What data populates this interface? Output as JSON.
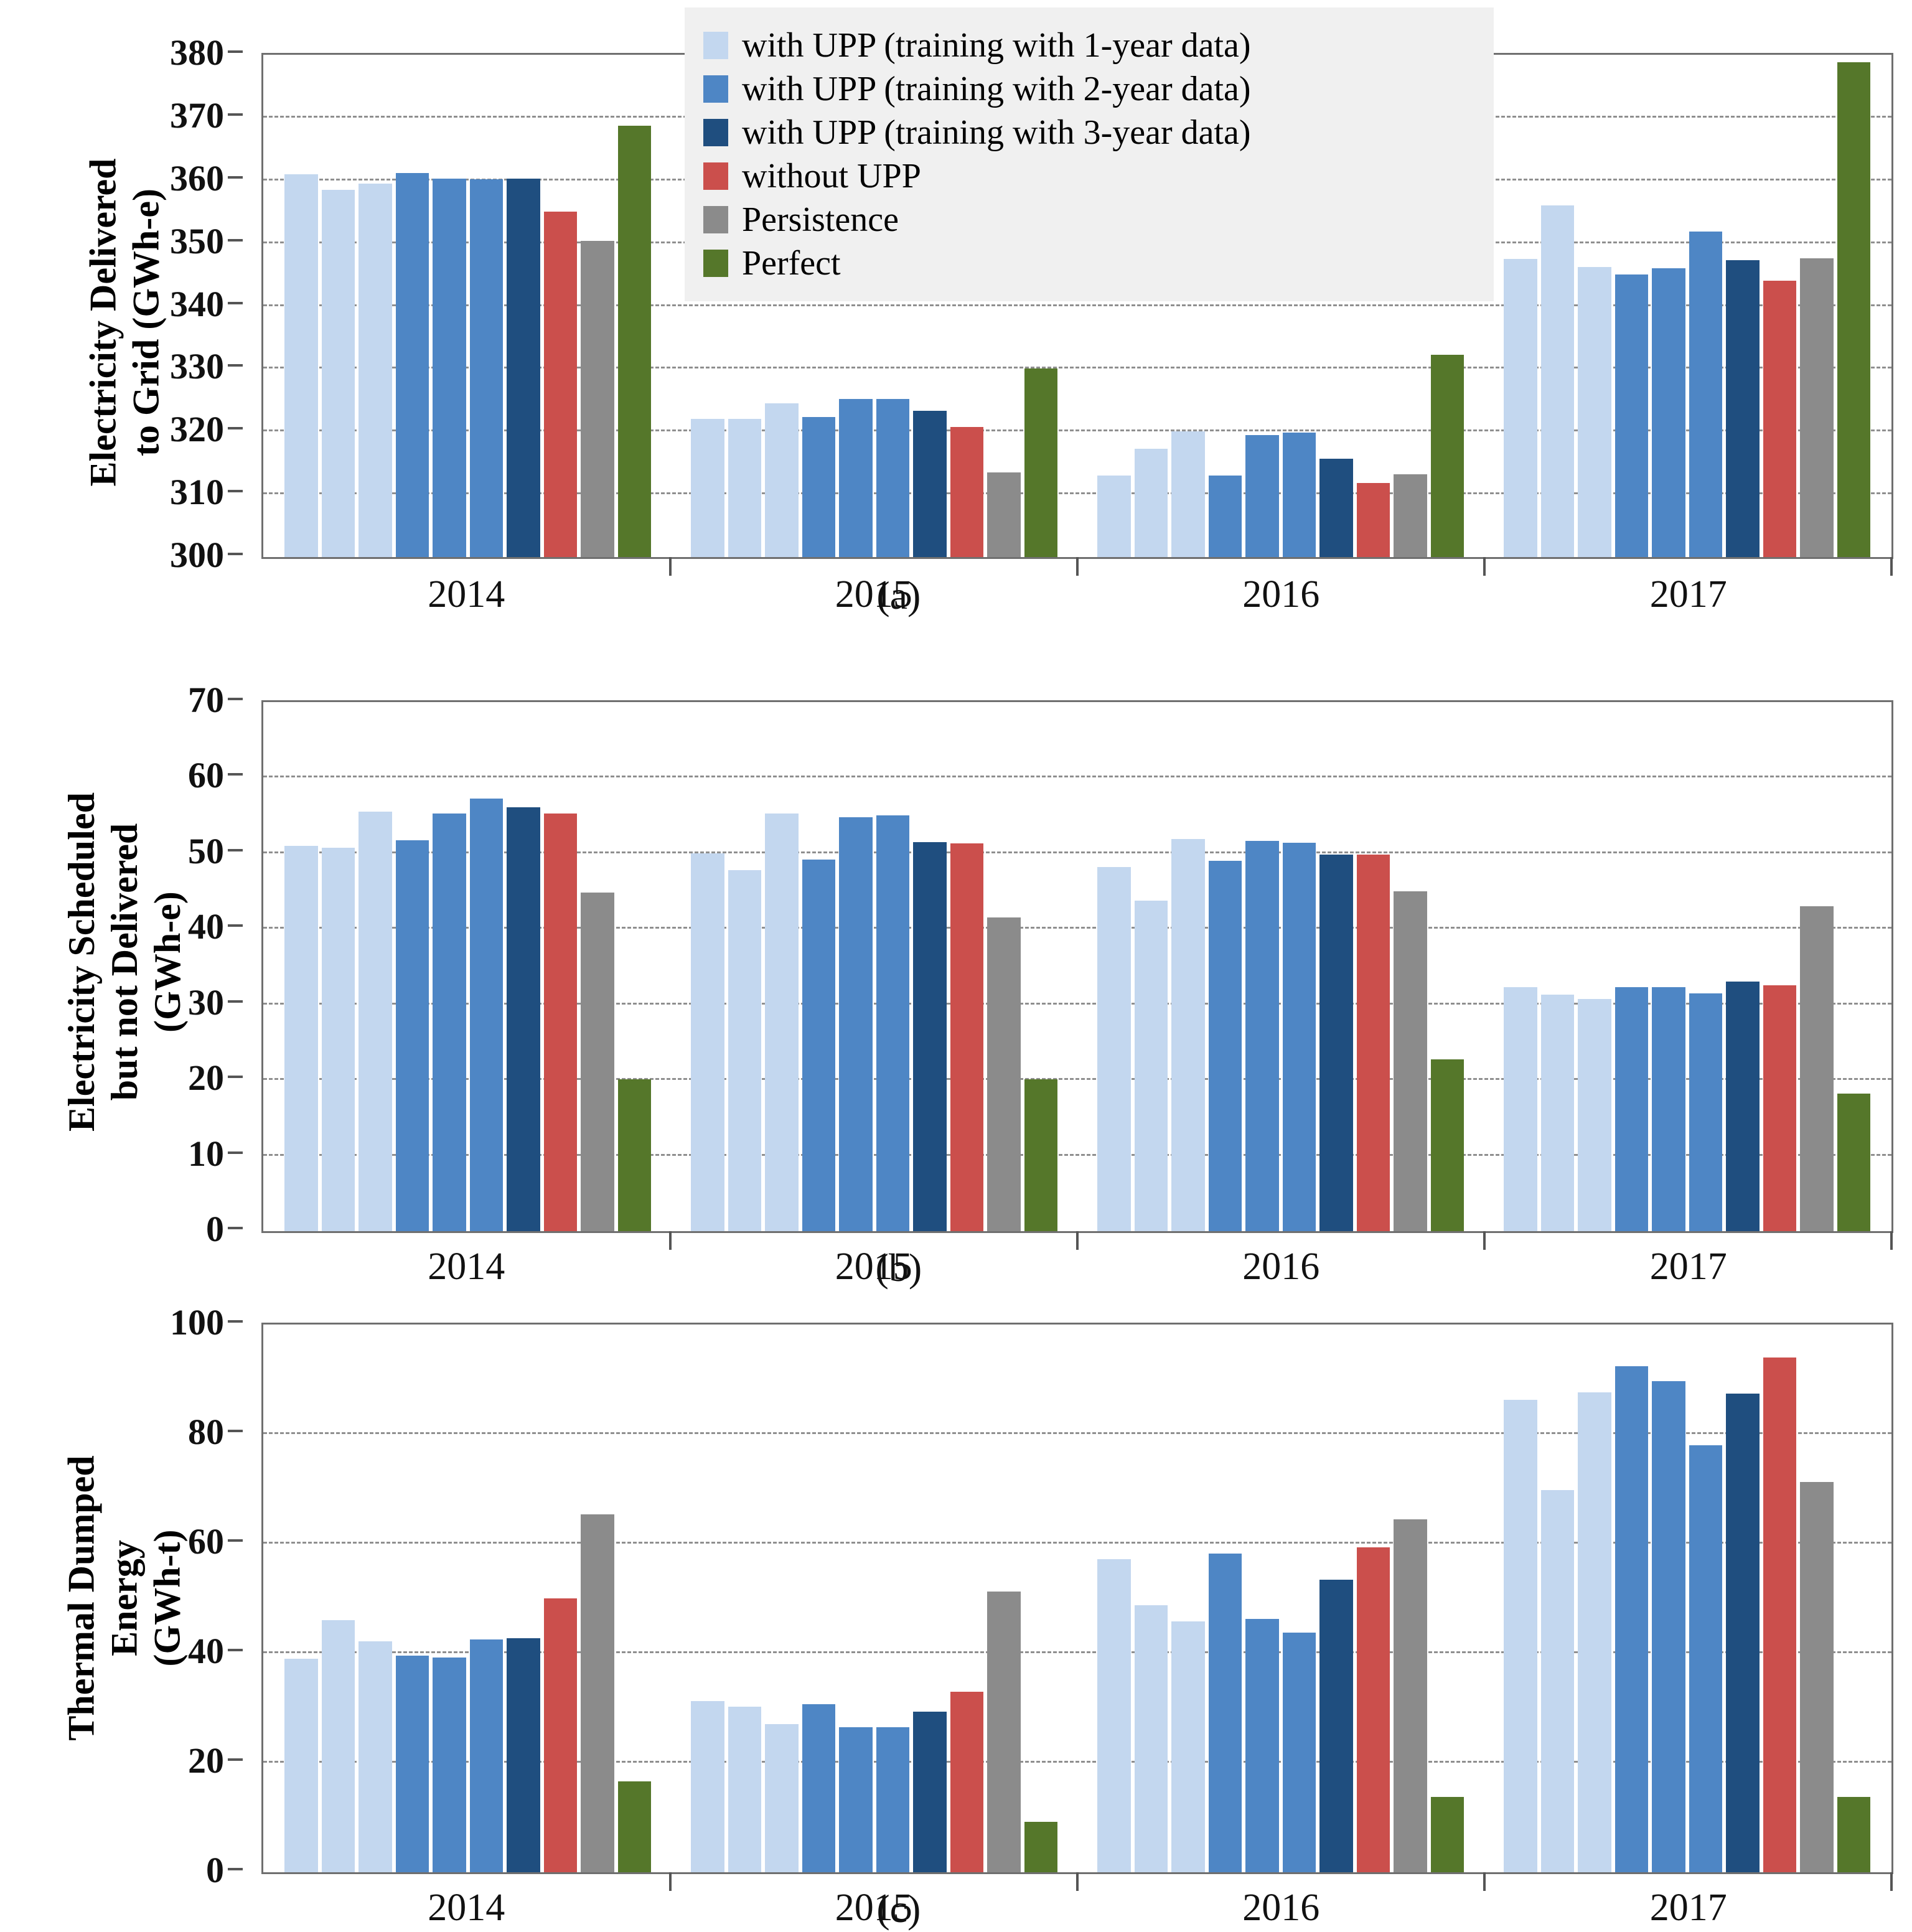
{
  "palette": {
    "upp1": "#C3D7EF",
    "upp2": "#4E86C5",
    "upp3": "#1F4E7F",
    "noupp": "#CB4F4C",
    "persistence": "#8B8B8B",
    "perfect": "#55772A"
  },
  "legend": [
    {
      "key": "upp1",
      "label": "with UPP (training with 1-year data)"
    },
    {
      "key": "upp2",
      "label": "with UPP (training with 2-year data)"
    },
    {
      "key": "upp3",
      "label": "with UPP (training with 3-year data)"
    },
    {
      "key": "noupp",
      "label": "without UPP"
    },
    {
      "key": "persistence",
      "label": "Persistence"
    },
    {
      "key": "perfect",
      "label": "Perfect"
    }
  ],
  "chart_data": [
    {
      "type": "bar",
      "panel_label": "(a)",
      "ylabel_lines": [
        "Electricity Delivered",
        "to Grid (GWh-e)"
      ],
      "ylim": [
        300,
        380
      ],
      "yticks": [
        300,
        310,
        320,
        330,
        340,
        350,
        360,
        370,
        380
      ],
      "grid": "dashed-horizontal",
      "legend_position": "top-center",
      "categories": [
        "2014",
        "2015",
        "2016",
        "2017"
      ],
      "bar_pattern": [
        "upp1",
        "upp1",
        "upp1",
        "upp2",
        "upp2",
        "upp2",
        "upp3",
        "noupp",
        "persistence",
        "perfect"
      ],
      "values": [
        [
          361.0,
          358.5,
          359.5,
          361.2,
          360.3,
          360.2,
          360.3,
          355.0,
          350.4,
          368.7
        ],
        [
          322.0,
          322.0,
          324.5,
          322.3,
          325.2,
          325.2,
          323.3,
          320.7,
          313.5,
          330.0
        ],
        [
          313.0,
          317.3,
          320.0,
          313.0,
          319.4,
          319.8,
          315.7,
          311.8,
          313.2,
          332.2
        ],
        [
          347.5,
          356.0,
          346.2,
          345.0,
          346.0,
          351.8,
          347.3,
          344.0,
          347.6,
          378.8
        ]
      ]
    },
    {
      "type": "bar",
      "panel_label": "(b)",
      "ylabel_lines": [
        "Electricity Scheduled",
        "but not Delivered",
        "(GWh-e)"
      ],
      "ylim": [
        0,
        70
      ],
      "yticks": [
        0,
        10,
        20,
        30,
        40,
        50,
        60,
        70
      ],
      "grid": "dashed-horizontal",
      "categories": [
        "2014",
        "2015",
        "2016",
        "2017"
      ],
      "bar_pattern": [
        "upp1",
        "upp1",
        "upp1",
        "upp2",
        "upp2",
        "upp2",
        "upp3",
        "noupp",
        "persistence",
        "perfect"
      ],
      "values": [
        [
          51.0,
          50.7,
          55.5,
          51.7,
          55.3,
          57.2,
          56.1,
          55.3,
          44.8,
          20.1
        ],
        [
          50.0,
          47.8,
          55.3,
          49.2,
          54.8,
          55.0,
          51.5,
          51.3,
          41.5,
          20.1
        ],
        [
          48.2,
          43.7,
          51.9,
          49.0,
          51.6,
          51.4,
          49.8,
          49.8,
          45.0,
          22.7
        ],
        [
          32.3,
          31.3,
          30.7,
          32.3,
          32.3,
          31.5,
          33.0,
          32.5,
          43.0,
          18.2
        ]
      ]
    },
    {
      "type": "bar",
      "panel_label": "(c)",
      "ylabel_lines": [
        "Thermal Dumped",
        "Energy",
        "(GWh-t)"
      ],
      "ylim": [
        0,
        100
      ],
      "yticks": [
        0,
        20,
        40,
        60,
        80,
        100
      ],
      "grid": "dashed-horizontal",
      "categories": [
        "2014",
        "2015",
        "2016",
        "2017"
      ],
      "bar_pattern": [
        "upp1",
        "upp1",
        "upp1",
        "upp2",
        "upp2",
        "upp2",
        "upp3",
        "noupp",
        "persistence",
        "perfect"
      ],
      "values": [
        [
          39.0,
          46.0,
          42.2,
          39.5,
          39.2,
          42.5,
          42.7,
          50.0,
          65.3,
          16.6
        ],
        [
          31.3,
          30.2,
          27.1,
          30.7,
          26.5,
          26.5,
          29.3,
          32.9,
          51.2,
          9.2
        ],
        [
          57.2,
          48.7,
          45.8,
          58.2,
          46.3,
          43.7,
          53.4,
          59.3,
          64.4,
          13.7
        ],
        [
          86.2,
          69.8,
          87.6,
          92.4,
          89.7,
          78.0,
          87.4,
          94.0,
          71.3,
          13.7
        ]
      ]
    }
  ]
}
